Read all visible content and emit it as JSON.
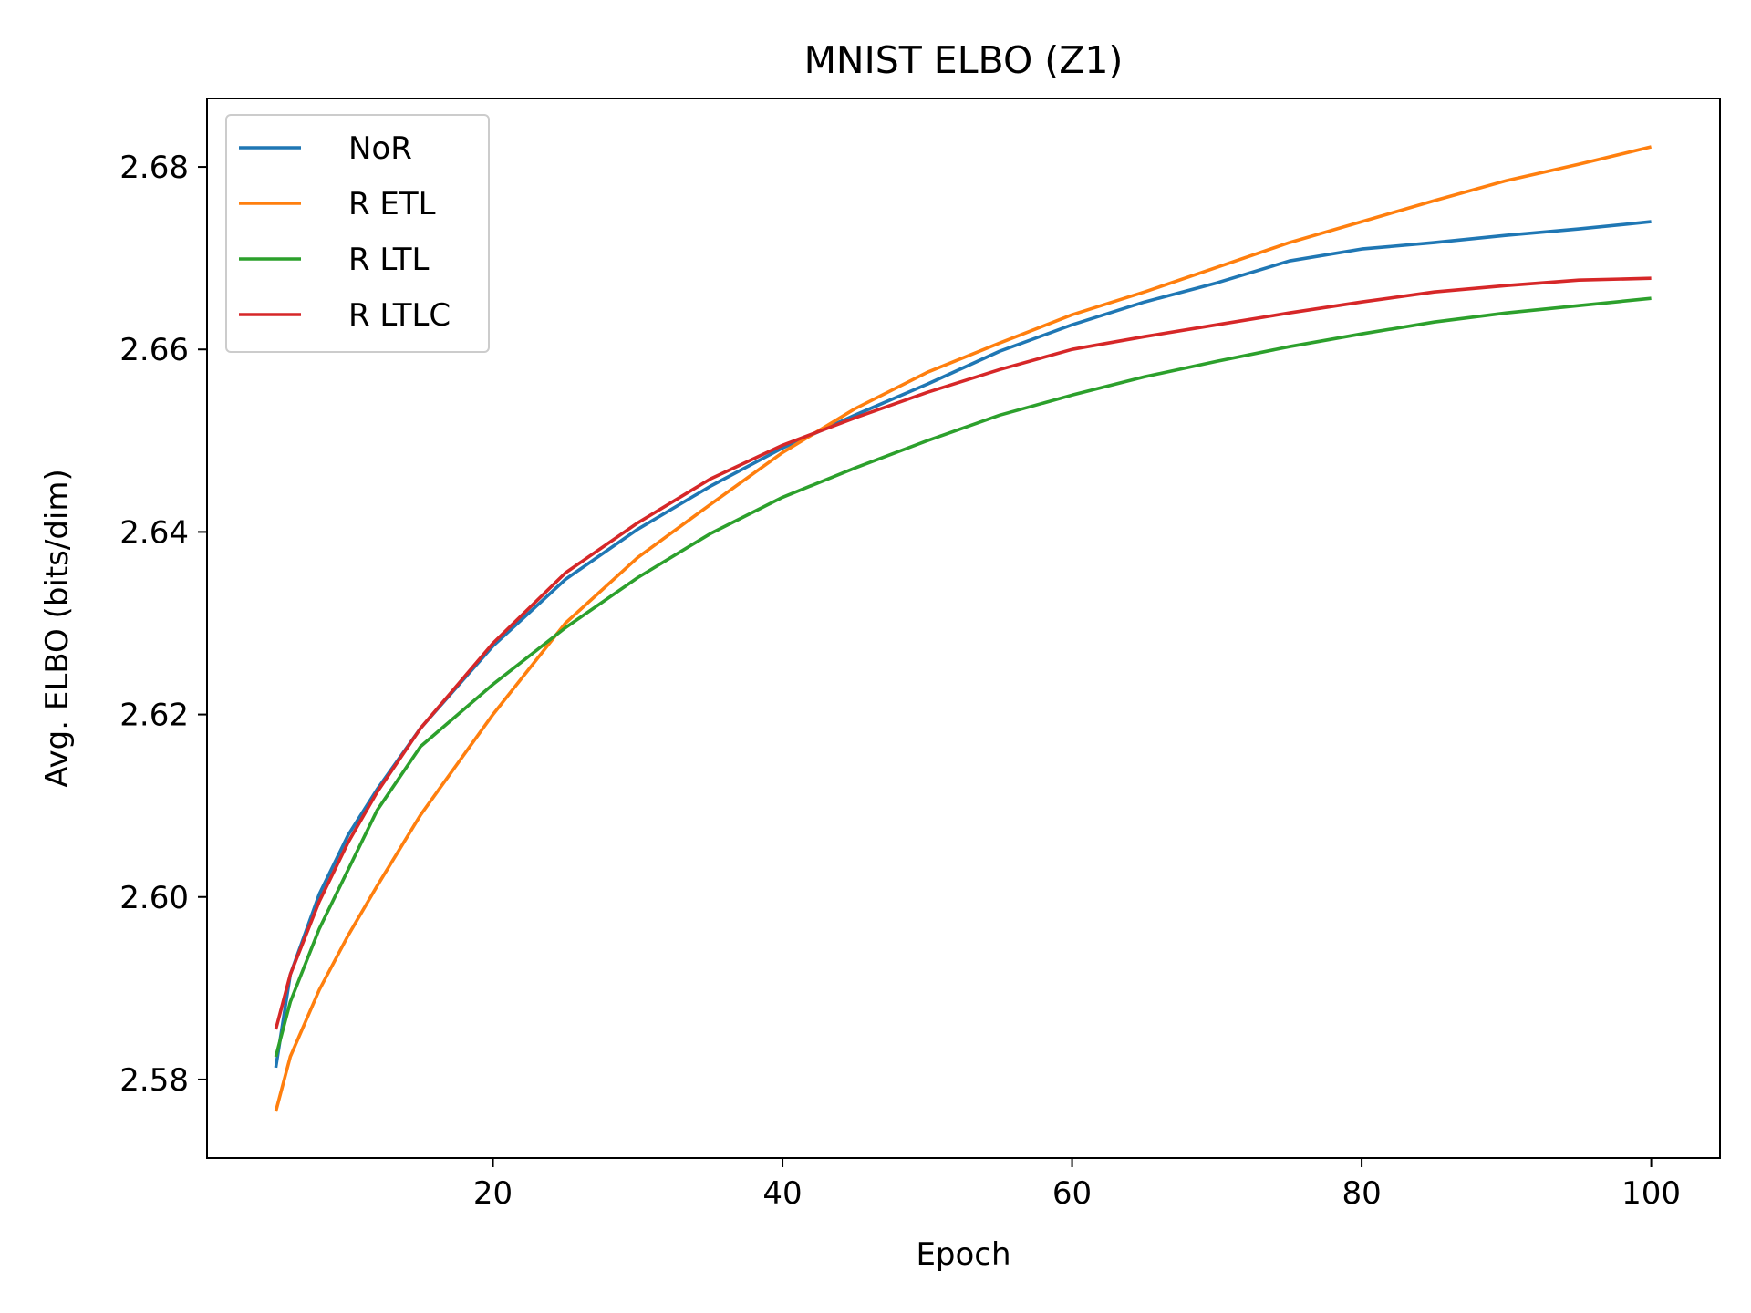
{
  "chart_data": {
    "type": "line",
    "title": "MNIST ELBO (Z1)",
    "xlabel": "Epoch",
    "ylabel": "Avg. ELBO (bits/dim)",
    "xlim": [
      0.25,
      104.75
    ],
    "ylim": [
      2.5714,
      2.6875
    ],
    "xticks": [
      20,
      40,
      60,
      80,
      100
    ],
    "yticks": [
      2.58,
      2.6,
      2.62,
      2.64,
      2.66,
      2.68
    ],
    "xtick_labels": [
      "20",
      "40",
      "60",
      "80",
      "100"
    ],
    "ytick_labels": [
      "2.58",
      "2.60",
      "2.62",
      "2.64",
      "2.66",
      "2.68"
    ],
    "grid": false,
    "legend_position": "upper-left",
    "series": [
      {
        "name": "NoR",
        "color": "#1f77b4",
        "points": [
          [
            5,
            2.5813
          ],
          [
            6,
            2.5915
          ],
          [
            8,
            2.6003
          ],
          [
            10,
            2.6068
          ],
          [
            12,
            2.6118
          ],
          [
            15,
            2.6185
          ],
          [
            20,
            2.6275
          ],
          [
            25,
            2.6348
          ],
          [
            30,
            2.6403
          ],
          [
            35,
            2.645
          ],
          [
            40,
            2.6492
          ],
          [
            45,
            2.6528
          ],
          [
            50,
            2.6562
          ],
          [
            55,
            2.6598
          ],
          [
            60,
            2.6627
          ],
          [
            65,
            2.6652
          ],
          [
            70,
            2.6673
          ],
          [
            75,
            2.6697
          ],
          [
            80,
            2.671
          ],
          [
            85,
            2.6717
          ],
          [
            90,
            2.6725
          ],
          [
            95,
            2.6732
          ],
          [
            100,
            2.674
          ]
        ]
      },
      {
        "name": "R ETL",
        "color": "#ff7f0e",
        "points": [
          [
            5,
            2.5765
          ],
          [
            6,
            2.5825
          ],
          [
            8,
            2.5898
          ],
          [
            10,
            2.5958
          ],
          [
            12,
            2.6012
          ],
          [
            15,
            2.609
          ],
          [
            20,
            2.62
          ],
          [
            25,
            2.63
          ],
          [
            30,
            2.6372
          ],
          [
            35,
            2.643
          ],
          [
            40,
            2.6487
          ],
          [
            45,
            2.6535
          ],
          [
            50,
            2.6575
          ],
          [
            55,
            2.6607
          ],
          [
            60,
            2.6638
          ],
          [
            65,
            2.6663
          ],
          [
            70,
            2.669
          ],
          [
            75,
            2.6717
          ],
          [
            80,
            2.674
          ],
          [
            85,
            2.6763
          ],
          [
            90,
            2.6785
          ],
          [
            95,
            2.6803
          ],
          [
            100,
            2.6822
          ]
        ]
      },
      {
        "name": "R LTL",
        "color": "#2ca02c",
        "points": [
          [
            5,
            2.5825
          ],
          [
            6,
            2.5885
          ],
          [
            8,
            2.5965
          ],
          [
            10,
            2.603
          ],
          [
            12,
            2.6095
          ],
          [
            15,
            2.6165
          ],
          [
            20,
            2.6233
          ],
          [
            25,
            2.6295
          ],
          [
            30,
            2.635
          ],
          [
            35,
            2.6398
          ],
          [
            40,
            2.6438
          ],
          [
            45,
            2.647
          ],
          [
            50,
            2.65
          ],
          [
            55,
            2.6528
          ],
          [
            60,
            2.655
          ],
          [
            65,
            2.657
          ],
          [
            70,
            2.6587
          ],
          [
            75,
            2.6603
          ],
          [
            80,
            2.6617
          ],
          [
            85,
            2.663
          ],
          [
            90,
            2.664
          ],
          [
            95,
            2.6648
          ],
          [
            100,
            2.6656
          ]
        ]
      },
      {
        "name": "R LTLC",
        "color": "#d62728",
        "points": [
          [
            5,
            2.5855
          ],
          [
            6,
            2.5915
          ],
          [
            8,
            2.5995
          ],
          [
            10,
            2.606
          ],
          [
            12,
            2.6115
          ],
          [
            15,
            2.6185
          ],
          [
            20,
            2.6278
          ],
          [
            25,
            2.6355
          ],
          [
            30,
            2.641
          ],
          [
            35,
            2.6458
          ],
          [
            40,
            2.6495
          ],
          [
            45,
            2.6525
          ],
          [
            50,
            2.6553
          ],
          [
            55,
            2.6578
          ],
          [
            60,
            2.66
          ],
          [
            65,
            2.6614
          ],
          [
            70,
            2.6627
          ],
          [
            75,
            2.664
          ],
          [
            80,
            2.6652
          ],
          [
            85,
            2.6663
          ],
          [
            90,
            2.667
          ],
          [
            95,
            2.6676
          ],
          [
            100,
            2.6678
          ]
        ]
      }
    ]
  }
}
